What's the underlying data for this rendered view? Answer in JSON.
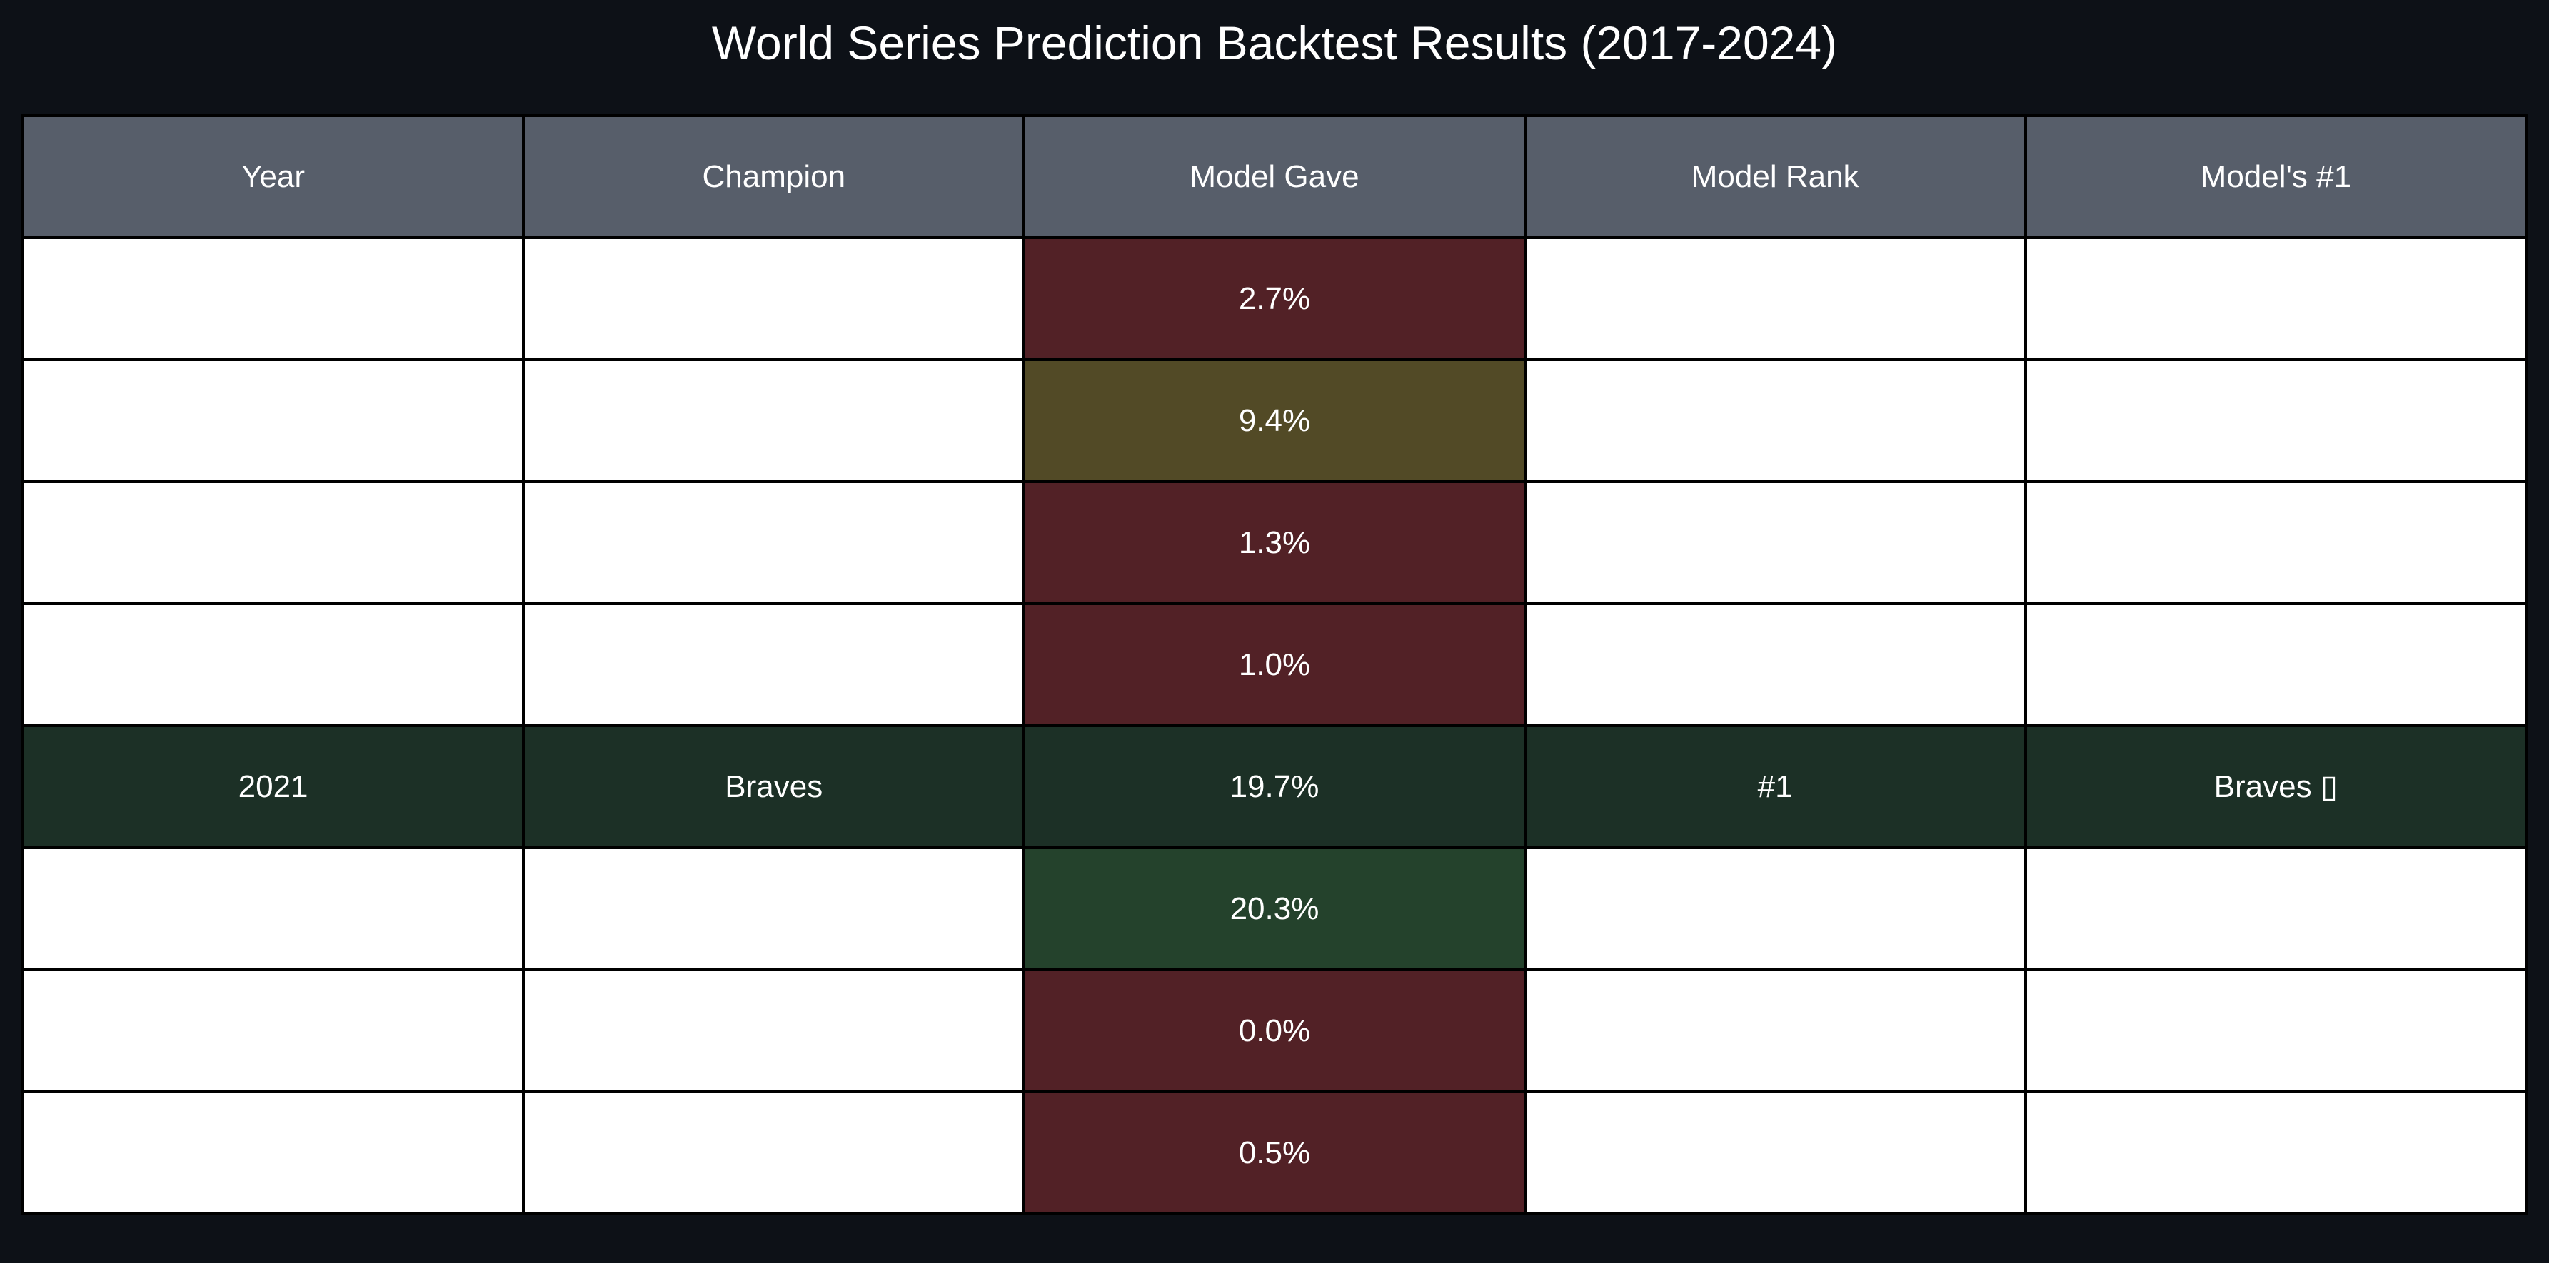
{
  "chart_data": {
    "type": "table",
    "title": "World Series Prediction Backtest Results (2017-2024)",
    "columns": [
      "Year",
      "Champion",
      "Model Gave",
      "Model Rank",
      "Model's #1"
    ],
    "rows": [
      {
        "year": "",
        "champion": "",
        "model_gave": "2.7%",
        "model_rank": "",
        "model_top": "",
        "gave_color": "#522126",
        "row_color": "#ffffff"
      },
      {
        "year": "",
        "champion": "",
        "model_gave": "9.4%",
        "model_rank": "",
        "model_top": "",
        "gave_color": "#524a26",
        "row_color": "#ffffff"
      },
      {
        "year": "",
        "champion": "",
        "model_gave": "1.3%",
        "model_rank": "",
        "model_top": "",
        "gave_color": "#522126",
        "row_color": "#ffffff"
      },
      {
        "year": "",
        "champion": "",
        "model_gave": "1.0%",
        "model_rank": "",
        "model_top": "",
        "gave_color": "#522126",
        "row_color": "#ffffff"
      },
      {
        "year": "2021",
        "champion": "Braves",
        "model_gave": "19.7%",
        "model_rank": "#1",
        "model_top": "Braves ▯",
        "gave_color": "#1c3026",
        "row_color": "#1c3026"
      },
      {
        "year": "",
        "champion": "",
        "model_gave": "20.3%",
        "model_rank": "",
        "model_top": "",
        "gave_color": "#24422c",
        "row_color": "#ffffff"
      },
      {
        "year": "",
        "champion": "",
        "model_gave": "0.0%",
        "model_rank": "",
        "model_top": "",
        "gave_color": "#522126",
        "row_color": "#ffffff"
      },
      {
        "year": "",
        "champion": "",
        "model_gave": "0.5%",
        "model_rank": "",
        "model_top": "",
        "gave_color": "#522126",
        "row_color": "#ffffff"
      }
    ]
  }
}
